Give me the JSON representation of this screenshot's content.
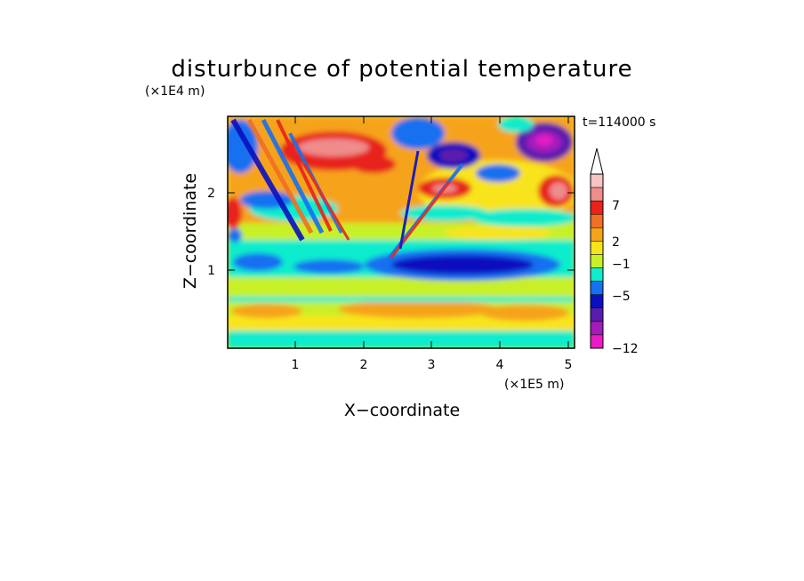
{
  "chart_data": {
    "type": "heatmap",
    "title": "disturbunce of potential temperature",
    "xlabel": "X−coordinate",
    "ylabel": "Z−coordinate",
    "x_unit": "(×1E5 m)",
    "y_unit": "(×1E4 m)",
    "time_label": "t=114000 s",
    "xlim": [
      0,
      5.12
    ],
    "ylim": [
      0,
      2.85
    ],
    "x_ticks": [
      "1",
      "2",
      "3",
      "4",
      "5"
    ],
    "y_ticks": [
      "1",
      "2"
    ],
    "colorbar": {
      "tick_labels": [
        "7",
        "2",
        "−1",
        "−5",
        "−12"
      ],
      "levels_top_to_bottom": [
        "#f6c4c4",
        "#ef8c8c",
        "#e8231c",
        "#f07024",
        "#f6a31c",
        "#f8e41c",
        "#c8f028",
        "#10eccc",
        "#1870f0",
        "#0a10c0",
        "#5a1cae",
        "#a21cba",
        "#e81cc4"
      ]
    }
  }
}
